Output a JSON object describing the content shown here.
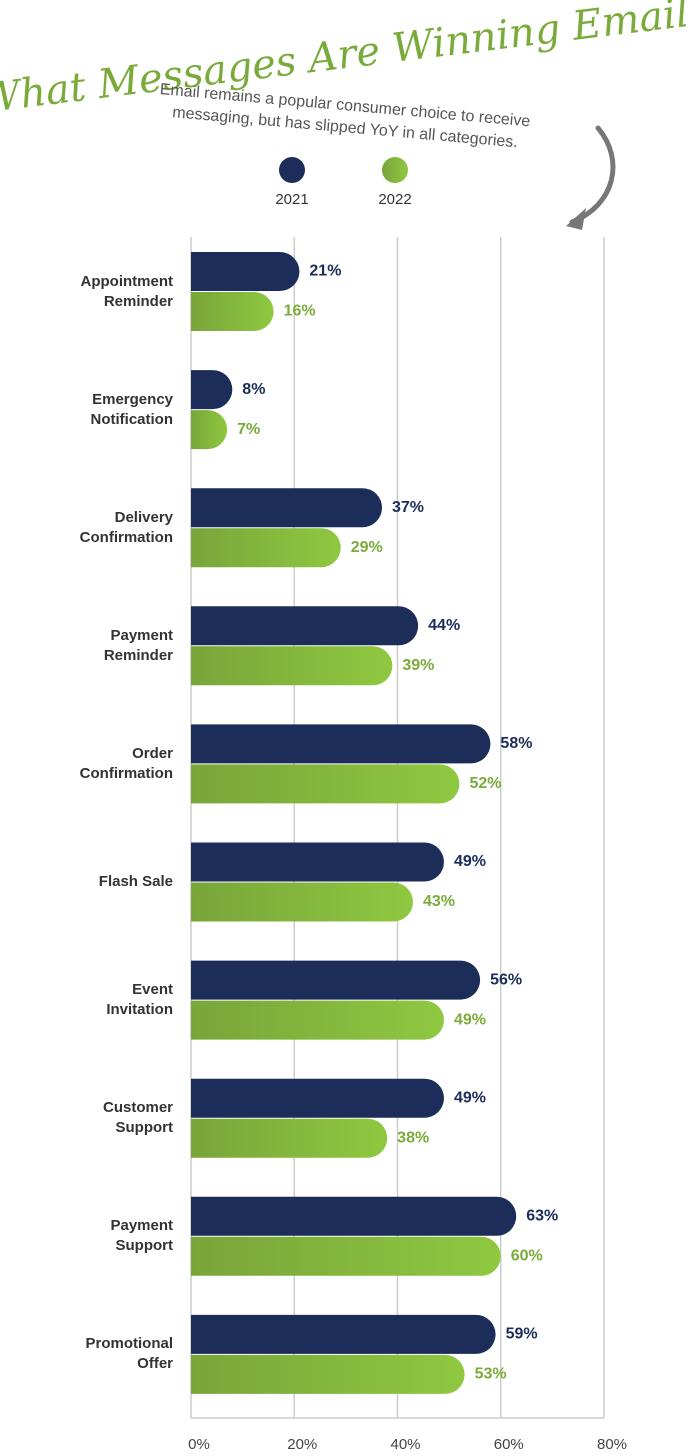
{
  "chart_data": {
    "type": "hbar",
    "title": "What Messages Are Winning Email?",
    "subtitle": [
      "Email remains a popular consumer choice to receive",
      "messaging, but has slipped YoY in all categories."
    ],
    "categories": [
      "Appointment Reminder",
      "Emergency Notification",
      "Delivery Confirmation",
      "Payment Reminder",
      "Order Confirmation",
      "Flash Sale",
      "Event Invitation",
      "Customer Support",
      "Payment Support",
      "Promotional Offer"
    ],
    "series": [
      {
        "name": "2021",
        "color": "#1c2d5a",
        "values": [
          21,
          8,
          37,
          44,
          58,
          49,
          56,
          49,
          63,
          59
        ],
        "value_labels": [
          "21%",
          "8%",
          "37%",
          "44%",
          "58%",
          "49%",
          "56%",
          "49%",
          "63%",
          "59%"
        ]
      },
      {
        "name": "2022",
        "color": "#8dc63f",
        "values": [
          16,
          7,
          29,
          39,
          52,
          43,
          49,
          38,
          60,
          53
        ],
        "value_labels": [
          "16%",
          "7%",
          "29%",
          "39%",
          "52%",
          "43%",
          "49%",
          "38%",
          "60%",
          "53%"
        ]
      }
    ],
    "xlim": [
      0,
      80
    ],
    "xticks": [
      {
        "value": 0,
        "label": "0%"
      },
      {
        "value": 20,
        "label": "20%"
      },
      {
        "value": 40,
        "label": "40%"
      },
      {
        "value": 60,
        "label": "60%"
      },
      {
        "value": 80,
        "label": "80%"
      }
    ],
    "grid": true
  }
}
